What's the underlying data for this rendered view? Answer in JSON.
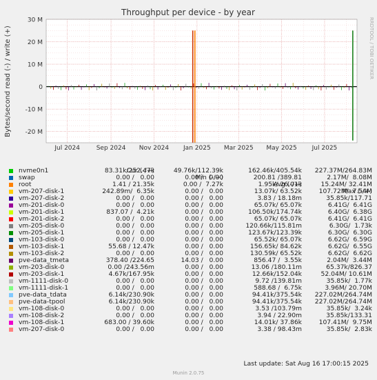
{
  "chart_data": {
    "type": "line",
    "title": "Throughput per device - by year",
    "ylabel": "Bytes/second read (-) / write (+)",
    "ylim": [
      -25000000,
      30000000
    ],
    "yticks": [
      {
        "value": 30000000,
        "label": "30 M"
      },
      {
        "value": 20000000,
        "label": "20 M"
      },
      {
        "value": 10000000,
        "label": "10 M"
      },
      {
        "value": 0,
        "label": "0"
      },
      {
        "value": -10000000,
        "label": "-10 M"
      },
      {
        "value": -20000000,
        "label": "-20 M"
      }
    ],
    "xrange": [
      "2024-06-01",
      "2025-08-16"
    ],
    "xticks": [
      {
        "date": "2024-07-01",
        "label": "Jul 2024"
      },
      {
        "date": "2024-09-01",
        "label": "Sep 2024"
      },
      {
        "date": "2024-11-01",
        "label": "Nov 2024"
      },
      {
        "date": "2025-01-01",
        "label": "Jan 2025"
      },
      {
        "date": "2025-03-01",
        "label": "Mar 2025"
      },
      {
        "date": "2025-05-01",
        "label": "May 2025"
      },
      {
        "date": "2025-07-01",
        "label": "Jul 2025"
      }
    ],
    "grid": true,
    "spikes": [
      {
        "date": "2024-12-26",
        "write": 25000000,
        "read": -25000000,
        "color": "#cc3300"
      },
      {
        "date": "2024-12-29",
        "write": 25000000,
        "read": -25000000,
        "color": "#ff7f00"
      },
      {
        "date": "2025-08-10",
        "write": 25000000,
        "read": -24000000,
        "color": "#1a7f1a"
      }
    ],
    "watermark": "RRDTOOL / TOBI OETIKER"
  },
  "legend": {
    "headers": {
      "cur": "Cur (-/+)",
      "min": "Min (-/+)",
      "avg": "Avg (-/+)",
      "max": "Max (-/+)"
    },
    "rows": [
      {
        "name": "nvme0n1",
        "color": "#00cc00",
        "cur": "83.31k/252.47k",
        "min": "49.76k/112.39k",
        "avg": "162.46k/405.54k",
        "max": "227.37M/264.83M"
      },
      {
        "name": "swap",
        "color": "#0066b3",
        "cur": "0.00 /   0.00",
        "min": "0.00 /   0.00",
        "avg": "200.81 /389.81",
        "max": "2.17M/  8.08M"
      },
      {
        "name": "root",
        "color": "#ff8000",
        "cur": "1.41 / 21.35k",
        "min": "0.00 /  7.27k",
        "avg": "1.95k/ 26.01k",
        "max": "15.24M/ 32.41M"
      },
      {
        "name": "vm-207-disk-1",
        "color": "#ffcc00",
        "cur": "242.89m/  6.35k",
        "min": "0.00 /   0.00",
        "avg": "13.07k/ 63.52k",
        "max": "107.72M/  7.54M"
      },
      {
        "name": "vm-207-disk-2",
        "color": "#330099",
        "cur": "0.00 /   0.00",
        "min": "0.00 /   0.00",
        "avg": "3.83 / 18.18m",
        "max": "35.85k/117.71"
      },
      {
        "name": "vm-201-disk-0",
        "color": "#990099",
        "cur": "0.00 /   0.00",
        "min": "0.00 /   0.00",
        "avg": "65.07k/ 65.07k",
        "max": "6.41G/  6.41G"
      },
      {
        "name": "vm-201-disk-1",
        "color": "#ccff00",
        "cur": "837.07 /  4.21k",
        "min": "0.00 /   0.00",
        "avg": "106.50k/174.74k",
        "max": "6.40G/  6.38G"
      },
      {
        "name": "vm-201-disk-2",
        "color": "#ff0000",
        "cur": "0.00 /   0.00",
        "min": "0.00 /   0.00",
        "avg": "65.07k/ 65.07k",
        "max": "6.41G/  6.41G"
      },
      {
        "name": "vm-205-disk-0",
        "color": "#808080",
        "cur": "0.00 /   0.00",
        "min": "0.00 /   0.00",
        "avg": "120.66k/115.81m",
        "max": "6.30G/  1.73k"
      },
      {
        "name": "vm-205-disk-1",
        "color": "#008f00",
        "cur": "0.00 /   0.00",
        "min": "0.00 /   0.00",
        "avg": "123.67k/123.39k",
        "max": "6.30G/  6.30G"
      },
      {
        "name": "vm-103-disk-0",
        "color": "#00487d",
        "cur": "0.00 /   0.00",
        "min": "0.00 /   0.00",
        "avg": "65.52k/ 65.07k",
        "max": "6.62G/  6.59G"
      },
      {
        "name": "vm-103-disk-1",
        "color": "#b35a00",
        "cur": "55.68 / 12.47k",
        "min": "0.00 /   0.00",
        "avg": "156.65k/ 84.62k",
        "max": "6.62G/  6.55G"
      },
      {
        "name": "vm-103-disk-2",
        "color": "#b38f00",
        "cur": "0.00 /   0.00",
        "min": "0.00 /   0.00",
        "avg": "130.59k/ 65.52k",
        "max": "6.62G/  6.62G"
      },
      {
        "name": "pve-data_tmeta",
        "color": "#6b006b",
        "cur": "378.40 /224.65",
        "min": "14.03 /   0.00",
        "avg": "856.47 /  3.55k",
        "max": "2.04M/  3.44M"
      },
      {
        "name": "vm-203-disk-0",
        "color": "#8fb300",
        "cur": "0.00 /243.56m",
        "min": "0.00 /   0.00",
        "avg": "13.06 /180.11m",
        "max": "65.37k/826.37"
      },
      {
        "name": "vm-203-disk-1",
        "color": "#b30000",
        "cur": "4.67k/167.95k",
        "min": "0.00 /   0.00",
        "avg": "12.66k/152.04k",
        "max": "52.04M/ 10.61M"
      },
      {
        "name": "vm-1111-disk-0",
        "color": "#bebebe",
        "cur": "0.00 /   0.00",
        "min": "0.00 /   0.00",
        "avg": "9.72 /139.81m",
        "max": "35.85k/  1.77k"
      },
      {
        "name": "vm-1111-disk-1",
        "color": "#80ff80",
        "cur": "0.00 /   0.00",
        "min": "0.00 /   0.00",
        "avg": "588.68 /  6.75k",
        "max": "3.96M/ 20.70M"
      },
      {
        "name": "pve-data_tdata",
        "color": "#80c9ff",
        "cur": "6.14k/230.90k",
        "min": "0.00 /   0.00",
        "avg": "94.41k/375.54k",
        "max": "227.02M/264.74M"
      },
      {
        "name": "pve-data-tpool",
        "color": "#ffc080",
        "cur": "6.14k/230.90k",
        "min": "0.00 /   0.00",
        "avg": "94.41k/375.54k",
        "max": "227.02M/264.74M"
      },
      {
        "name": "vm-108-disk-0",
        "color": "#ffe680",
        "cur": "0.00 /   0.00",
        "min": "0.00 /   0.00",
        "avg": "3.53 /103.79m",
        "max": "35.85k/  3.24k"
      },
      {
        "name": "vm-108-disk-2",
        "color": "#aa80ff",
        "cur": "0.00 /   0.00",
        "min": "0.00 /   0.00",
        "avg": "3.94 / 22.90m",
        "max": "35.85k/133.31"
      },
      {
        "name": "vm-108-disk-1",
        "color": "#ee00cc",
        "cur": "683.00 / 39.60k",
        "min": "0.00 /   0.00",
        "avg": "14.01k/ 37.86k",
        "max": "107.41M/  9.75M"
      },
      {
        "name": "vm-207-disk-0",
        "color": "#ff8080",
        "cur": "0.00 /   0.00",
        "min": "0.00 /   0.00",
        "avg": "3.38 / 98.43m",
        "max": "35.85k/  2.83k"
      }
    ]
  },
  "footer": {
    "last_update": "Last update: Sat Aug 16 17:00:15 2025",
    "munin": "Munin 2.0.75"
  }
}
